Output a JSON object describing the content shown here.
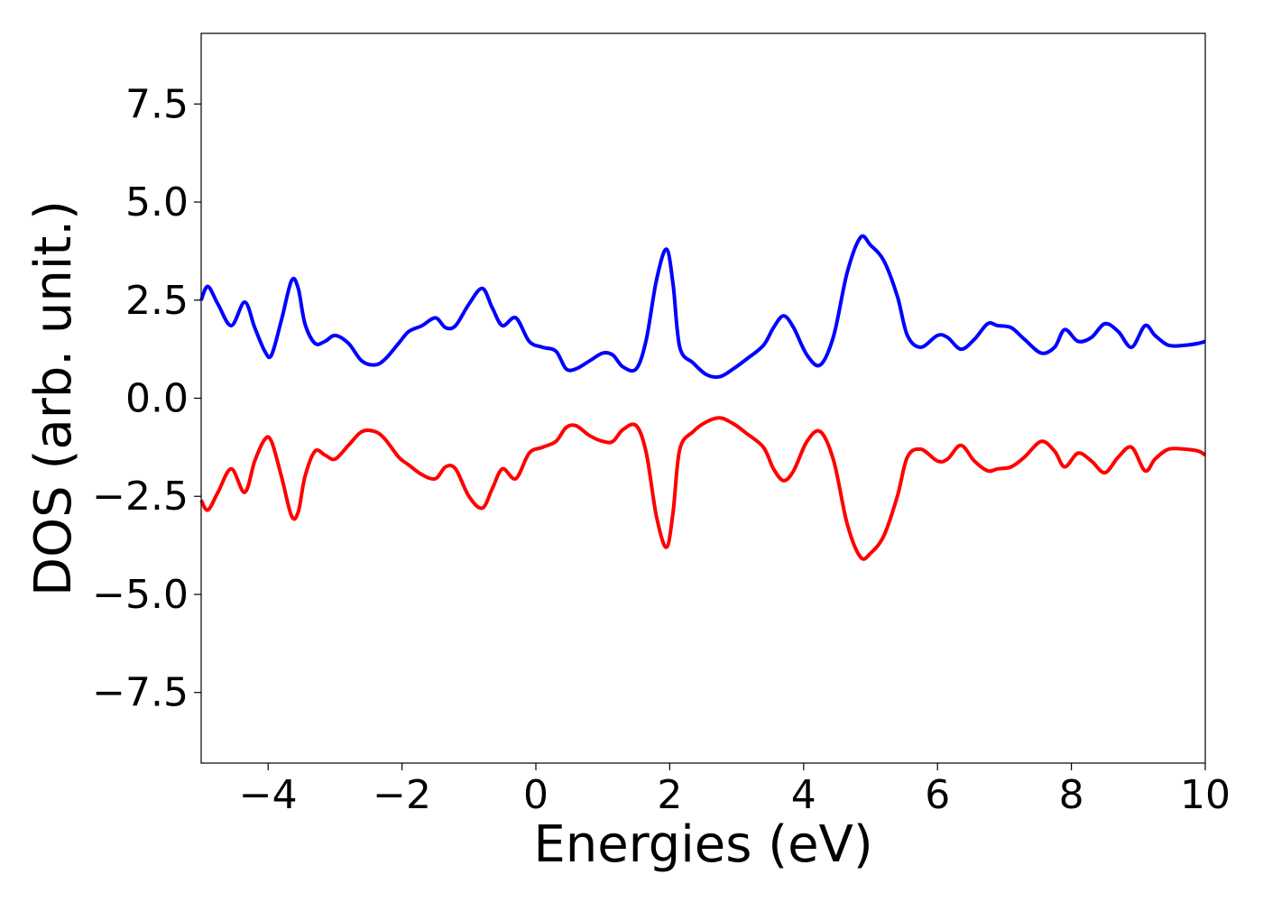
{
  "chart_data": {
    "type": "line",
    "title": "",
    "xlabel": "Energies (eV)",
    "ylabel": "DOS (arb. unit.)",
    "xlim": [
      -5,
      10
    ],
    "ylim": [
      -9.3,
      9.3
    ],
    "grid": false,
    "x_ticks": [
      -4,
      -2,
      0,
      2,
      4,
      6,
      8,
      10
    ],
    "x_tick_labels": [
      "−4",
      "−2",
      "0",
      "2",
      "4",
      "6",
      "8",
      "10"
    ],
    "y_ticks": [
      7.5,
      5.0,
      2.5,
      0.0,
      -2.5,
      -5.0,
      -7.5
    ],
    "y_tick_labels": [
      "7.5",
      "5.0",
      "2.5",
      "0.0",
      "−2.5",
      "−5.0",
      "−7.5"
    ],
    "series": [
      {
        "color": "#0000ff",
        "x": [
          -5.0,
          -4.9,
          -4.75,
          -4.55,
          -4.35,
          -4.2,
          -4.05,
          -3.95,
          -3.8,
          -3.65,
          -3.55,
          -3.45,
          -3.3,
          -3.15,
          -3.0,
          -2.8,
          -2.6,
          -2.4,
          -2.25,
          -2.05,
          -1.9,
          -1.7,
          -1.5,
          -1.35,
          -1.2,
          -1.0,
          -0.8,
          -0.65,
          -0.5,
          -0.3,
          -0.1,
          0.1,
          0.3,
          0.45,
          0.6,
          0.8,
          1.0,
          1.15,
          1.3,
          1.5,
          1.65,
          1.8,
          1.95,
          2.05,
          2.15,
          2.35,
          2.55,
          2.75,
          2.95,
          3.15,
          3.4,
          3.55,
          3.7,
          3.85,
          4.05,
          4.25,
          4.45,
          4.65,
          4.85,
          5.0,
          5.2,
          5.4,
          5.55,
          5.75,
          6.0,
          6.15,
          6.35,
          6.55,
          6.75,
          6.9,
          7.1,
          7.3,
          7.55,
          7.75,
          7.9,
          8.1,
          8.3,
          8.5,
          8.7,
          8.9,
          9.1,
          9.25,
          9.45,
          9.7,
          9.9,
          10.0
        ],
        "y": [
          2.5,
          2.85,
          2.4,
          1.85,
          2.45,
          1.8,
          1.2,
          1.1,
          2.0,
          3.0,
          2.8,
          1.9,
          1.4,
          1.45,
          1.6,
          1.4,
          0.95,
          0.85,
          1.0,
          1.4,
          1.7,
          1.85,
          2.05,
          1.8,
          1.85,
          2.4,
          2.8,
          2.3,
          1.85,
          2.05,
          1.45,
          1.3,
          1.2,
          0.75,
          0.75,
          0.95,
          1.15,
          1.1,
          0.8,
          0.75,
          1.5,
          3.0,
          3.8,
          2.9,
          1.3,
          0.9,
          0.6,
          0.55,
          0.75,
          1.0,
          1.35,
          1.8,
          2.1,
          1.8,
          1.1,
          0.85,
          1.6,
          3.2,
          4.1,
          3.9,
          3.5,
          2.6,
          1.6,
          1.3,
          1.6,
          1.55,
          1.25,
          1.5,
          1.9,
          1.85,
          1.8,
          1.5,
          1.15,
          1.3,
          1.75,
          1.45,
          1.55,
          1.9,
          1.7,
          1.3,
          1.85,
          1.6,
          1.35,
          1.35,
          1.4,
          1.45
        ]
      },
      {
        "color": "#ff0000",
        "x": [
          -5.0,
          -4.9,
          -4.75,
          -4.55,
          -4.35,
          -4.2,
          -4.05,
          -3.95,
          -3.8,
          -3.65,
          -3.55,
          -3.45,
          -3.3,
          -3.15,
          -3.0,
          -2.8,
          -2.6,
          -2.4,
          -2.25,
          -2.05,
          -1.9,
          -1.7,
          -1.5,
          -1.35,
          -1.2,
          -1.0,
          -0.8,
          -0.65,
          -0.5,
          -0.3,
          -0.1,
          0.1,
          0.3,
          0.45,
          0.6,
          0.8,
          1.0,
          1.15,
          1.3,
          1.5,
          1.65,
          1.8,
          1.95,
          2.05,
          2.15,
          2.35,
          2.55,
          2.75,
          2.95,
          3.15,
          3.4,
          3.55,
          3.7,
          3.85,
          4.05,
          4.25,
          4.45,
          4.65,
          4.85,
          5.0,
          5.2,
          5.4,
          5.55,
          5.75,
          6.0,
          6.15,
          6.35,
          6.55,
          6.75,
          6.9,
          7.1,
          7.3,
          7.55,
          7.75,
          7.9,
          8.1,
          8.3,
          8.5,
          8.7,
          8.9,
          9.1,
          9.25,
          9.45,
          9.7,
          9.9,
          10.0
        ],
        "y": [
          -2.6,
          -2.85,
          -2.4,
          -1.8,
          -2.4,
          -1.6,
          -1.05,
          -1.1,
          -2.0,
          -3.0,
          -2.9,
          -2.0,
          -1.35,
          -1.45,
          -1.55,
          -1.2,
          -0.85,
          -0.85,
          -1.05,
          -1.5,
          -1.7,
          -1.95,
          -2.05,
          -1.75,
          -1.8,
          -2.5,
          -2.8,
          -2.3,
          -1.8,
          -2.05,
          -1.4,
          -1.25,
          -1.1,
          -0.75,
          -0.7,
          -0.95,
          -1.1,
          -1.1,
          -0.8,
          -0.7,
          -1.4,
          -3.0,
          -3.8,
          -2.9,
          -1.3,
          -0.85,
          -0.6,
          -0.5,
          -0.65,
          -0.9,
          -1.25,
          -1.8,
          -2.1,
          -1.85,
          -1.1,
          -0.85,
          -1.6,
          -3.2,
          -4.05,
          -3.95,
          -3.5,
          -2.5,
          -1.5,
          -1.3,
          -1.6,
          -1.55,
          -1.2,
          -1.6,
          -1.85,
          -1.8,
          -1.75,
          -1.5,
          -1.1,
          -1.35,
          -1.75,
          -1.4,
          -1.6,
          -1.9,
          -1.5,
          -1.25,
          -1.85,
          -1.55,
          -1.3,
          -1.3,
          -1.35,
          -1.45
        ]
      }
    ]
  }
}
